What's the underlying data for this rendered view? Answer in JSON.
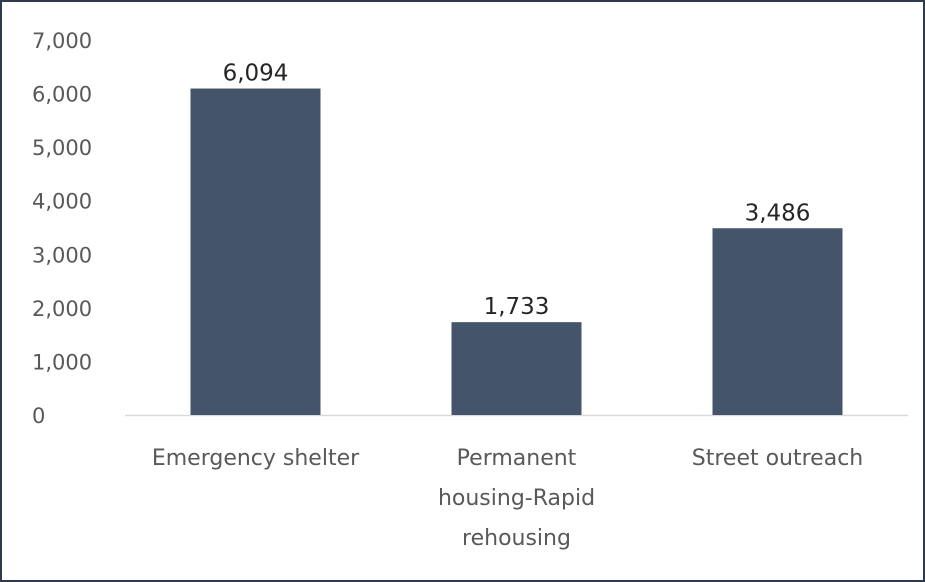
{
  "chart_data": {
    "type": "bar",
    "categories": [
      [
        "Emergency shelter"
      ],
      [
        "Permanent",
        "housing-Rapid",
        "rehousing"
      ],
      [
        "Street outreach"
      ]
    ],
    "values": [
      6094,
      1733,
      3486
    ],
    "data_labels": [
      "6,094",
      "1,733",
      "3,486"
    ],
    "y_ticks": [
      0,
      1000,
      2000,
      3000,
      4000,
      5000,
      6000,
      7000
    ],
    "y_tick_labels": [
      "0",
      "1,000",
      "2,000",
      "3,000",
      "4,000",
      "5,000",
      "6,000",
      "7,000"
    ],
    "ylim": [
      0,
      7000
    ],
    "grid": false,
    "legend": "none",
    "bar_color": "#44546a",
    "axis_color": "#d9d9d9"
  }
}
